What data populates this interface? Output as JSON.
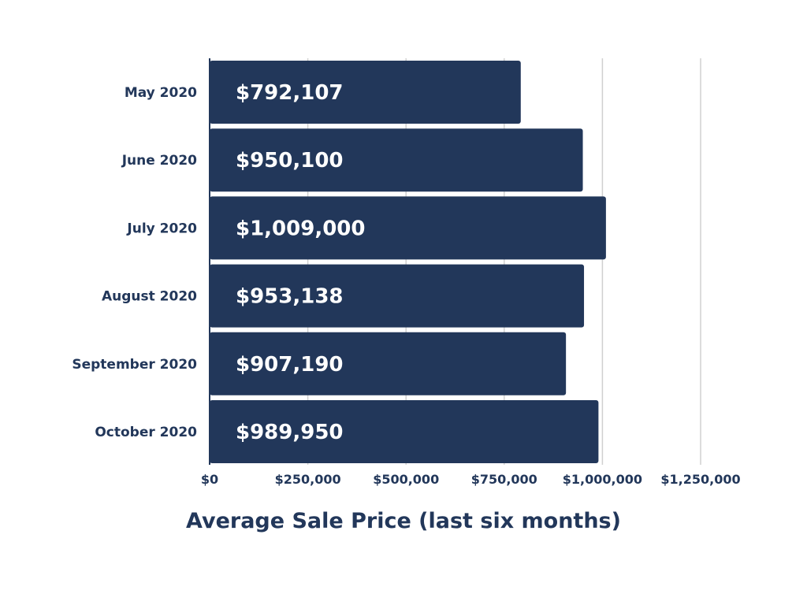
{
  "chart_data": {
    "type": "bar",
    "orientation": "horizontal",
    "title": "Average Sale Price (last six months)",
    "xlabel": "",
    "ylabel": "",
    "categories": [
      "May 2020",
      "June 2020",
      "July 2020",
      "August 2020",
      "September 2020",
      "October 2020"
    ],
    "values": [
      792107,
      950100,
      1009000,
      953138,
      907190,
      989950
    ],
    "value_labels": [
      "$792,107",
      "$950,100",
      "$1,009,000",
      "$953,138",
      "$907,190",
      "$989,950"
    ],
    "xlim": [
      0,
      1250000
    ],
    "x_ticks": [
      0,
      250000,
      500000,
      750000,
      1000000,
      1250000
    ],
    "x_tick_labels": [
      "$0",
      "$250,000",
      "$500,000",
      "$750,000",
      "$1,000,000",
      "$1,250,000"
    ],
    "grid": "vertical",
    "colors": {
      "bar": "#22375a",
      "bar_label": "#ffffff",
      "text": "#22375a",
      "grid": "#d0d0d0",
      "axis": "#22375a"
    }
  }
}
